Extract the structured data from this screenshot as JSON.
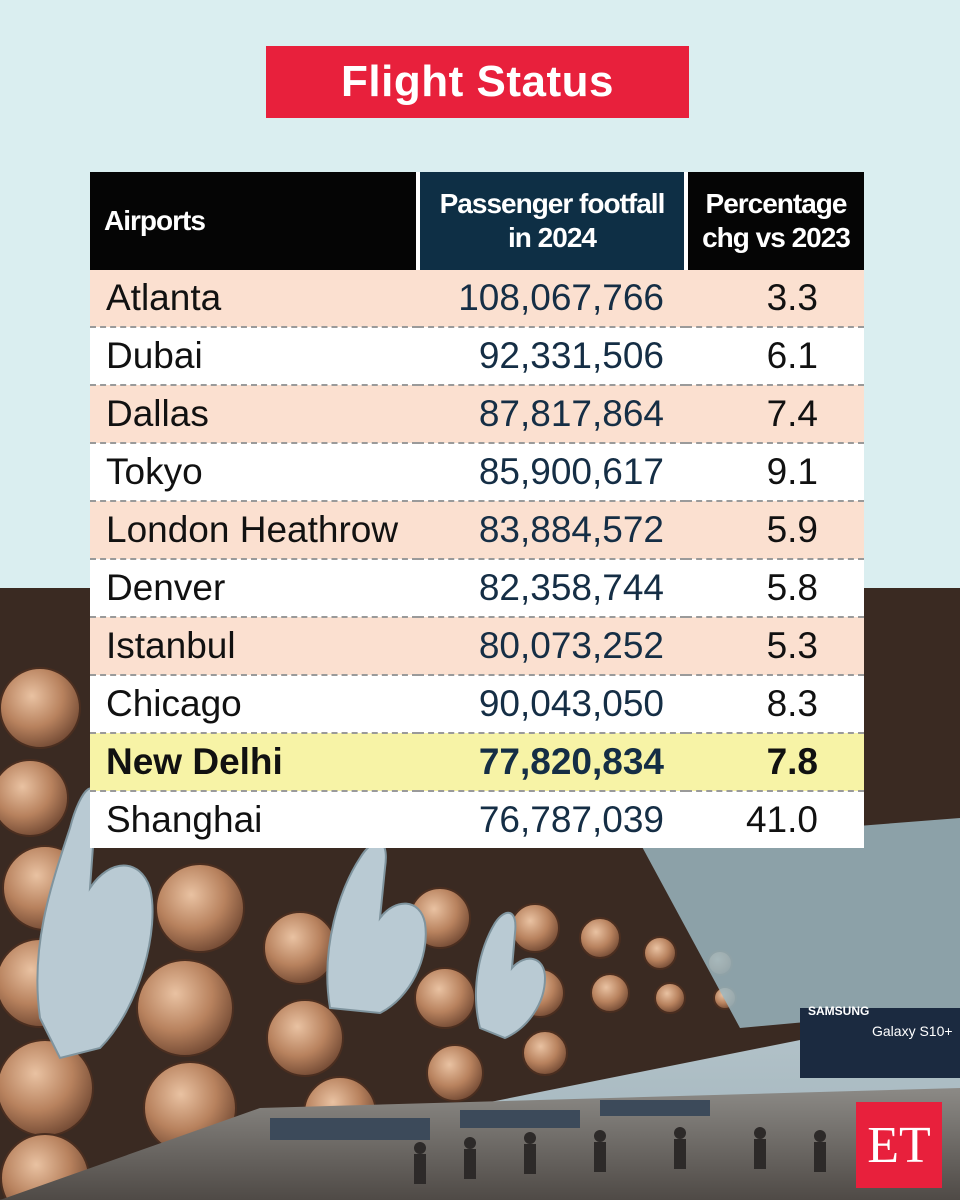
{
  "title": "Flight Status",
  "table": {
    "headers": {
      "airports": "Airports",
      "passenger_line1": "Passenger footfall",
      "passenger_line2": "in 2024",
      "pct_line1": "Percentage",
      "pct_line2": "chg vs 2023"
    },
    "rows": [
      {
        "airport": "Atlanta",
        "footfall": "108,067,766",
        "pct": "3.3"
      },
      {
        "airport": "Dubai",
        "footfall": "92,331,506",
        "pct": "6.1"
      },
      {
        "airport": "Dallas",
        "footfall": "87,817,864",
        "pct": "7.4"
      },
      {
        "airport": "Tokyo",
        "footfall": "85,900,617",
        "pct": "9.1"
      },
      {
        "airport": "London Heathrow",
        "footfall": "83,884,572",
        "pct": "5.9"
      },
      {
        "airport": "Denver",
        "footfall": "82,358,744",
        "pct": "5.8"
      },
      {
        "airport": "Istanbul",
        "footfall": "80,073,252",
        "pct": "5.3"
      },
      {
        "airport": "Chicago",
        "footfall": "90,043,050",
        "pct": "8.3"
      },
      {
        "airport": "New Delhi",
        "footfall": "77,820,834",
        "pct": "7.8"
      },
      {
        "airport": "Shanghai",
        "footfall": "76,787,039",
        "pct": "41.0"
      }
    ]
  },
  "photo": {
    "billboard_brand": "SAMSUNG",
    "billboard_text": "Galaxy S10+"
  },
  "logo": "ET",
  "colors": {
    "title_bg": "#e8203c",
    "highlight_row": "#f7f3a6",
    "alt_row": "#fbe0d0",
    "header_dark": "#050505",
    "header_navy": "#0e2f45"
  }
}
